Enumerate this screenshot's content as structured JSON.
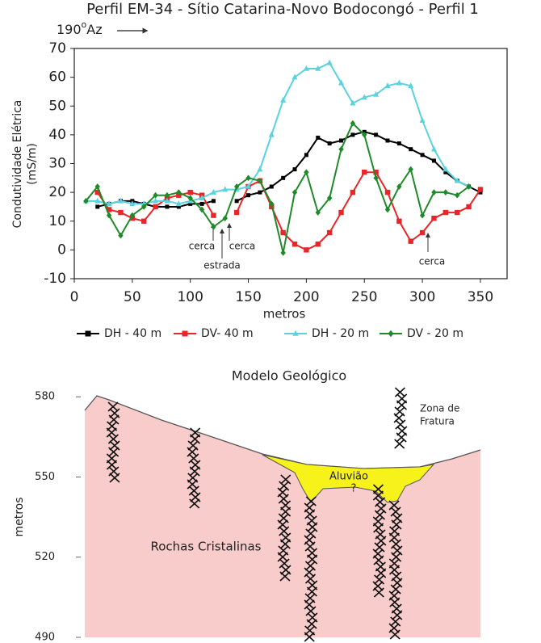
{
  "chart_data": [
    {
      "type": "line",
      "title": "Perfil EM-34 -  Sítio Catarina-Novo Bodocongó - Perfil 1",
      "direction": {
        "value": "190",
        "sup": "o",
        "unit": "Az"
      },
      "xlabel": "metros",
      "ylabel": [
        "Condutividade Elétrica",
        "(mS/m)"
      ],
      "annotations": [
        "cerca",
        "cerca",
        "estrada",
        "cerca"
      ],
      "x": [
        10,
        20,
        30,
        40,
        50,
        60,
        70,
        80,
        90,
        100,
        110,
        120,
        130,
        140,
        150,
        160,
        170,
        180,
        190,
        200,
        210,
        220,
        230,
        240,
        250,
        260,
        270,
        280,
        290,
        300,
        310,
        320,
        330,
        340,
        350
      ],
      "xlim": [
        0,
        373
      ],
      "xticks": [
        0,
        50,
        100,
        150,
        200,
        250,
        300,
        350
      ],
      "ylim": [
        -10,
        70
      ],
      "yticks": [
        -10,
        0,
        10,
        20,
        30,
        40,
        50,
        60,
        70
      ],
      "legend": "bottom",
      "series": [
        {
          "name": "DH - 40 m",
          "color": "#000000",
          "marker": "square",
          "values": [
            null,
            15,
            16,
            17,
            17,
            16,
            15,
            15,
            15,
            16,
            16,
            17,
            null,
            17,
            19,
            20,
            22,
            25,
            28,
            33,
            39,
            37,
            38,
            40,
            41,
            40,
            38,
            37,
            35,
            33,
            31,
            27,
            24,
            22,
            20
          ]
        },
        {
          "name": "DV- 40 m",
          "color": "#e8262a",
          "marker": "square",
          "values": [
            null,
            20,
            14,
            13,
            11,
            10,
            15,
            18,
            19,
            20,
            19,
            12,
            null,
            13,
            22,
            24,
            15,
            6,
            2,
            0,
            2,
            6,
            13,
            20,
            27,
            27,
            20,
            10,
            3,
            6,
            11,
            13,
            13,
            15,
            21
          ]
        },
        {
          "name": "DH - 20 m",
          "color": "#5ad3de",
          "marker": "triangle",
          "values": [
            17,
            17,
            16,
            17,
            16,
            16,
            17,
            17,
            16,
            17,
            18,
            20,
            21,
            21,
            22,
            28,
            40,
            52,
            60,
            63,
            63,
            65,
            58,
            51,
            53,
            54,
            57,
            58,
            57,
            45,
            35,
            28,
            24,
            22,
            null
          ]
        },
        {
          "name": "DV - 20 m",
          "color": "#1f8a2a",
          "marker": "diamond",
          "values": [
            17,
            22,
            12,
            5,
            12,
            15,
            19,
            19,
            20,
            18,
            14,
            8,
            11,
            22,
            25,
            24,
            16,
            -1,
            20,
            27,
            13,
            18,
            35,
            44,
            40,
            25,
            14,
            22,
            28,
            12,
            20,
            20,
            19,
            22,
            null
          ]
        }
      ]
    },
    {
      "type": "section",
      "title": "Modelo Geológico",
      "ylabel": "metros",
      "ylim": [
        490,
        584
      ],
      "yticks": [
        490,
        520,
        550,
        580
      ],
      "labels": [
        "Zona de",
        "Fratura",
        "Aluvião",
        "?",
        "Rochas Cristalinas"
      ]
    }
  ]
}
